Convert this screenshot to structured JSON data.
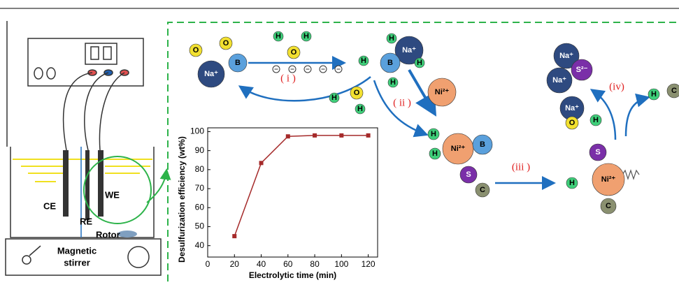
{
  "chart_data": {
    "type": "line",
    "x_label": "Electrolytic time (min)",
    "y_label": "Desulfurization efficiency (wt%)",
    "x": [
      20,
      40,
      60,
      80,
      100,
      120
    ],
    "series": [
      {
        "color": "#a52a2a",
        "values": [
          45,
          83.5,
          97.5,
          98,
          98,
          98
        ]
      }
    ],
    "xlim": [
      0,
      127
    ],
    "ylim": [
      34,
      102
    ],
    "xticks": [
      0,
      20,
      40,
      60,
      80,
      100,
      120
    ],
    "yticks": [
      40,
      50,
      60,
      70,
      80,
      90,
      100
    ]
  },
  "apparatus": {
    "electrodes": [
      "CE",
      "RE",
      "WE"
    ],
    "rotor": "Rotor",
    "stirrer": [
      "Magnetic",
      "stirrer"
    ]
  },
  "steps": [
    "( i )",
    "( ii )",
    "(iii )",
    "(iv)"
  ],
  "atoms": [
    "O",
    "O",
    "B",
    "Na⁺",
    "H",
    "O",
    "H",
    "Na⁺",
    "B",
    "H",
    "H",
    "H",
    "H",
    "Ni²⁺",
    "H",
    "O",
    "H",
    "H",
    "H",
    "Ni²⁺",
    "B",
    "S",
    "C",
    "S",
    "Ni²⁺",
    "H",
    "C",
    "Na⁺",
    "Na⁺",
    "S²⁻",
    "Na⁺",
    "O",
    "H",
    "H",
    "C"
  ]
}
